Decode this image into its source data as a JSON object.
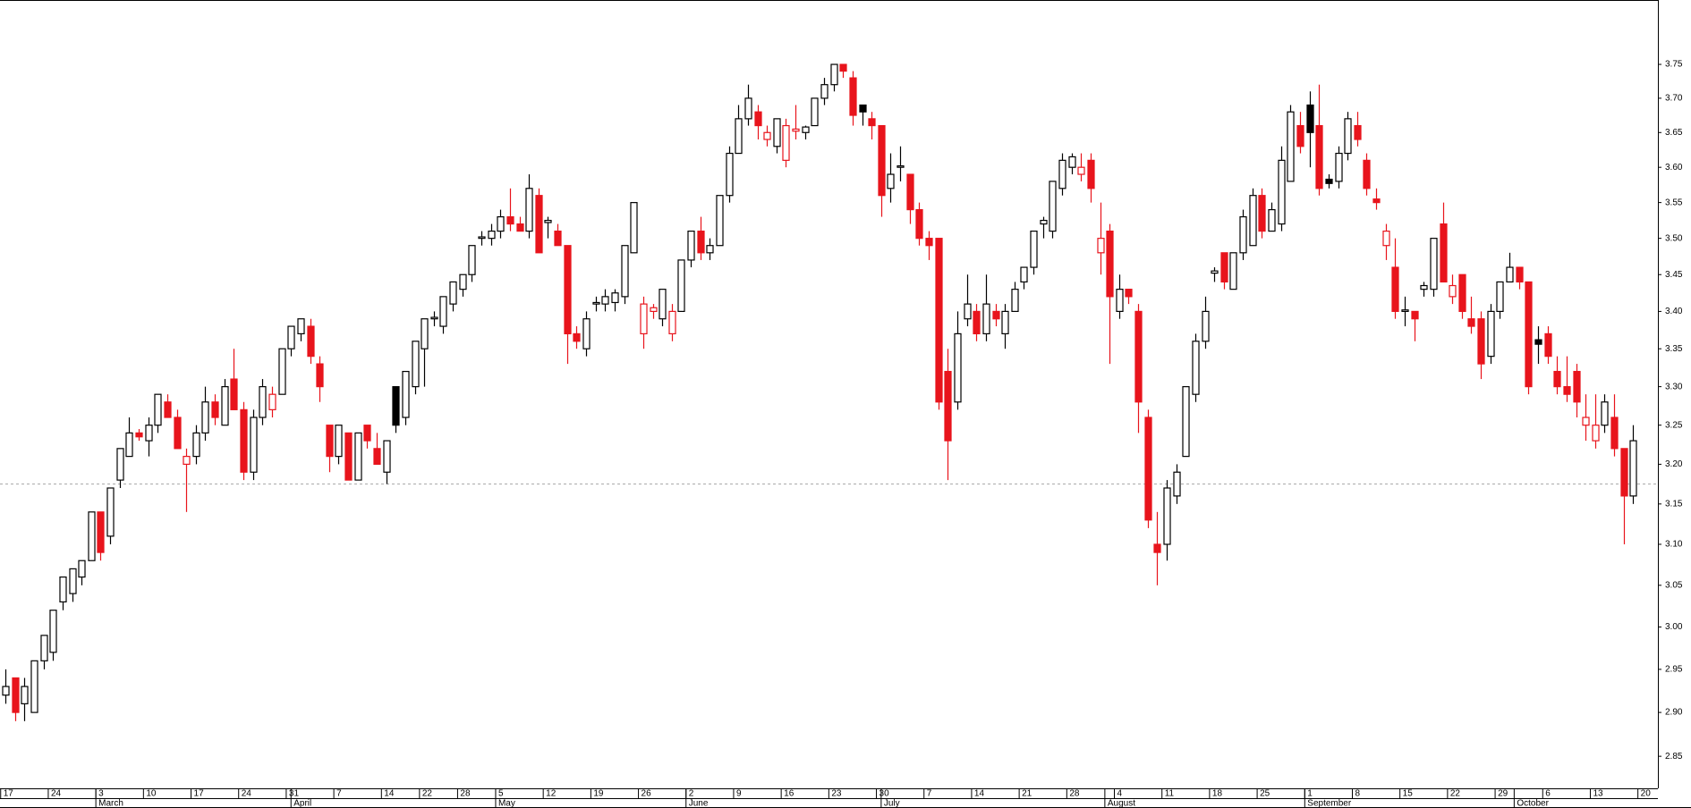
{
  "chart_data": {
    "type": "candlestick",
    "open": [
      2.92,
      2.94,
      2.91,
      2.9,
      2.96,
      2.97,
      3.03,
      3.04,
      3.06,
      3.08,
      3.14,
      3.11,
      3.18,
      3.21,
      3.24,
      3.23,
      3.25,
      3.28,
      3.26,
      3.2,
      3.21,
      3.24,
      3.28,
      3.25,
      3.31,
      3.27,
      3.19,
      3.26,
      3.27,
      3.29,
      3.35,
      3.37,
      3.38,
      3.33,
      3.25,
      3.21,
      3.24,
      3.18,
      3.25,
      3.22,
      3.19,
      3.3,
      3.26,
      3.3,
      3.35,
      3.39,
      3.38,
      3.41,
      3.43,
      3.45,
      3.5,
      3.5,
      3.51,
      3.53,
      3.52,
      3.51,
      3.56,
      3.522,
      3.51,
      3.49,
      3.37,
      3.35,
      3.41,
      3.41,
      3.412,
      3.42,
      3.48,
      3.37,
      3.4,
      3.39,
      3.37,
      3.4,
      3.47,
      3.51,
      3.48,
      3.49,
      3.56,
      3.62,
      3.67,
      3.68,
      3.64,
      3.63,
      3.61,
      3.652,
      3.65,
      3.66,
      3.7,
      3.72,
      3.75,
      3.73,
      3.69,
      3.67,
      3.66,
      3.57,
      3.6,
      3.59,
      3.54,
      3.5,
      3.5,
      3.32,
      3.28,
      3.39,
      3.4,
      3.37,
      3.4,
      3.37,
      3.4,
      3.44,
      3.46,
      3.52,
      3.51,
      3.57,
      3.6,
      3.59,
      3.61,
      3.48,
      3.51,
      3.4,
      3.43,
      3.4,
      3.26,
      3.1,
      3.1,
      3.16,
      3.21,
      3.29,
      3.36,
      3.452,
      3.48,
      3.43,
      3.48,
      3.49,
      3.56,
      3.51,
      3.52,
      3.58,
      3.66,
      3.69,
      3.66,
      3.583,
      3.58,
      3.62,
      3.66,
      3.61,
      3.555,
      3.49,
      3.46,
      3.4,
      3.4,
      3.43,
      3.43,
      3.52,
      3.42,
      3.45,
      3.39,
      3.39,
      3.34,
      3.4,
      3.44,
      3.46,
      3.44,
      3.362,
      3.37,
      3.32,
      3.3,
      3.32,
      3.25,
      3.23,
      3.25,
      3.26,
      3.22,
      3.16
    ],
    "high": [
      2.95,
      2.94,
      2.94,
      2.96,
      2.99,
      3.02,
      3.06,
      3.07,
      3.08,
      3.14,
      3.14,
      3.17,
      3.22,
      3.26,
      3.245,
      3.26,
      3.29,
      3.29,
      3.27,
      3.22,
      3.25,
      3.3,
      3.29,
      3.31,
      3.35,
      3.28,
      3.27,
      3.31,
      3.3,
      3.35,
      3.38,
      3.39,
      3.39,
      3.34,
      3.25,
      3.25,
      3.24,
      3.24,
      3.25,
      3.24,
      3.23,
      3.3,
      3.32,
      3.36,
      3.39,
      3.4,
      3.42,
      3.44,
      3.45,
      3.49,
      3.51,
      3.52,
      3.54,
      3.57,
      3.53,
      3.59,
      3.57,
      3.53,
      3.52,
      3.49,
      3.38,
      3.4,
      3.42,
      3.43,
      3.43,
      3.49,
      3.55,
      3.42,
      3.41,
      3.43,
      3.41,
      3.47,
      3.51,
      3.53,
      3.5,
      3.56,
      3.63,
      3.69,
      3.72,
      3.69,
      3.66,
      3.67,
      3.67,
      3.69,
      3.66,
      3.7,
      3.73,
      3.75,
      3.75,
      3.74,
      3.69,
      3.68,
      3.66,
      3.62,
      3.63,
      3.59,
      3.55,
      3.51,
      3.5,
      3.35,
      3.4,
      3.45,
      3.41,
      3.45,
      3.41,
      3.41,
      3.44,
      3.46,
      3.51,
      3.53,
      3.58,
      3.62,
      3.62,
      3.62,
      3.62,
      3.55,
      3.52,
      3.45,
      3.43,
      3.41,
      3.27,
      3.14,
      3.18,
      3.2,
      3.3,
      3.37,
      3.42,
      3.46,
      3.48,
      3.48,
      3.54,
      3.57,
      3.57,
      3.55,
      3.63,
      3.69,
      3.68,
      3.71,
      3.72,
      3.59,
      3.63,
      3.68,
      3.68,
      3.62,
      3.57,
      3.52,
      3.5,
      3.42,
      3.4,
      3.44,
      3.5,
      3.55,
      3.45,
      3.45,
      3.42,
      3.4,
      3.41,
      3.44,
      3.48,
      3.46,
      3.44,
      3.38,
      3.38,
      3.34,
      3.34,
      3.33,
      3.29,
      3.29,
      3.29,
      3.29,
      3.22,
      3.25
    ],
    "low": [
      2.91,
      2.89,
      2.89,
      2.9,
      2.95,
      2.96,
      3.02,
      3.03,
      3.05,
      3.08,
      3.08,
      3.1,
      3.17,
      3.21,
      3.23,
      3.21,
      3.24,
      3.26,
      3.22,
      3.14,
      3.2,
      3.23,
      3.25,
      3.25,
      3.27,
      3.18,
      3.18,
      3.25,
      3.26,
      3.29,
      3.34,
      3.36,
      3.33,
      3.28,
      3.19,
      3.2,
      3.18,
      3.18,
      3.22,
      3.2,
      3.175,
      3.24,
      3.25,
      3.29,
      3.3,
      3.38,
      3.37,
      3.4,
      3.42,
      3.44,
      3.49,
      3.49,
      3.5,
      3.51,
      3.51,
      3.5,
      3.48,
      3.5,
      3.49,
      3.33,
      3.35,
      3.34,
      3.4,
      3.4,
      3.4,
      3.41,
      3.48,
      3.35,
      3.39,
      3.38,
      3.36,
      3.4,
      3.46,
      3.47,
      3.47,
      3.49,
      3.55,
      3.62,
      3.66,
      3.64,
      3.63,
      3.62,
      3.6,
      3.64,
      3.64,
      3.66,
      3.69,
      3.71,
      3.73,
      3.66,
      3.66,
      3.64,
      3.53,
      3.55,
      3.58,
      3.52,
      3.49,
      3.47,
      3.27,
      3.18,
      3.27,
      3.38,
      3.36,
      3.36,
      3.38,
      3.35,
      3.4,
      3.43,
      3.45,
      3.5,
      3.5,
      3.56,
      3.59,
      3.58,
      3.55,
      3.45,
      3.33,
      3.39,
      3.41,
      3.24,
      3.12,
      3.05,
      3.08,
      3.15,
      3.21,
      3.28,
      3.35,
      3.44,
      3.43,
      3.43,
      3.47,
      3.49,
      3.5,
      3.51,
      3.51,
      3.58,
      3.62,
      3.6,
      3.56,
      3.57,
      3.57,
      3.61,
      3.63,
      3.56,
      3.54,
      3.47,
      3.39,
      3.38,
      3.36,
      3.42,
      3.42,
      3.44,
      3.41,
      3.39,
      3.37,
      3.31,
      3.33,
      3.39,
      3.44,
      3.43,
      3.29,
      3.33,
      3.33,
      3.29,
      3.28,
      3.26,
      3.23,
      3.22,
      3.24,
      3.21,
      3.1,
      3.15
    ],
    "close": [
      2.93,
      2.9,
      2.93,
      2.96,
      2.99,
      3.02,
      3.06,
      3.07,
      3.08,
      3.14,
      3.09,
      3.17,
      3.22,
      3.24,
      3.235,
      3.25,
      3.29,
      3.26,
      3.22,
      3.21,
      3.24,
      3.28,
      3.26,
      3.3,
      3.27,
      3.19,
      3.26,
      3.3,
      3.29,
      3.35,
      3.38,
      3.39,
      3.34,
      3.3,
      3.21,
      3.25,
      3.18,
      3.24,
      3.23,
      3.2,
      3.23,
      3.25,
      3.32,
      3.36,
      3.39,
      3.392,
      3.42,
      3.44,
      3.45,
      3.49,
      3.502,
      3.51,
      3.53,
      3.52,
      3.51,
      3.57,
      3.48,
      3.525,
      3.49,
      3.37,
      3.36,
      3.39,
      3.412,
      3.42,
      3.425,
      3.49,
      3.55,
      3.41,
      3.405,
      3.43,
      3.4,
      3.47,
      3.51,
      3.48,
      3.49,
      3.56,
      3.62,
      3.67,
      3.7,
      3.66,
      3.65,
      3.67,
      3.66,
      3.655,
      3.658,
      3.7,
      3.72,
      3.75,
      3.74,
      3.675,
      3.68,
      3.66,
      3.56,
      3.59,
      3.602,
      3.54,
      3.5,
      3.49,
      3.28,
      3.23,
      3.37,
      3.41,
      3.37,
      3.41,
      3.39,
      3.4,
      3.43,
      3.46,
      3.51,
      3.525,
      3.58,
      3.61,
      3.615,
      3.6,
      3.57,
      3.5,
      3.42,
      3.43,
      3.42,
      3.28,
      3.13,
      3.09,
      3.17,
      3.19,
      3.3,
      3.36,
      3.4,
      3.455,
      3.44,
      3.48,
      3.53,
      3.56,
      3.51,
      3.54,
      3.61,
      3.68,
      3.63,
      3.65,
      3.57,
      3.577,
      3.62,
      3.67,
      3.64,
      3.57,
      3.55,
      3.51,
      3.4,
      3.402,
      3.39,
      3.435,
      3.5,
      3.44,
      3.435,
      3.4,
      3.38,
      3.33,
      3.4,
      3.44,
      3.46,
      3.44,
      3.3,
      3.356,
      3.34,
      3.3,
      3.29,
      3.28,
      3.26,
      3.25,
      3.28,
      3.22,
      3.16,
      3.23
    ],
    "up_color": "#000000",
    "down_color": "#e8141c",
    "log_scale": true,
    "ylim": [
      2.814,
      3.847
    ],
    "yticks": [
      {
        "value": 2.85,
        "label": "2.85"
      },
      {
        "value": 2.9,
        "label": "2.90"
      },
      {
        "value": 2.95,
        "label": "2.95"
      },
      {
        "value": 3,
        "label": "3.00"
      },
      {
        "value": 3.05,
        "label": "3.05"
      },
      {
        "value": 3.1,
        "label": "3.10"
      },
      {
        "value": 3.15,
        "label": "3.15"
      },
      {
        "value": 3.2,
        "label": "3.20"
      },
      {
        "value": 3.25,
        "label": "3.25"
      },
      {
        "value": 3.3,
        "label": "3.30"
      },
      {
        "value": 3.35,
        "label": "3.35"
      },
      {
        "value": 3.4,
        "label": "3.40"
      },
      {
        "value": 3.45,
        "label": "3.45"
      },
      {
        "value": 3.5,
        "label": "3.50"
      },
      {
        "value": 3.55,
        "label": "3.55"
      },
      {
        "value": 3.6,
        "label": "3.60"
      },
      {
        "value": 3.65,
        "label": "3.65"
      },
      {
        "value": 3.7,
        "label": "3.70"
      },
      {
        "value": 3.75,
        "label": "3.75"
      }
    ],
    "xlim": [
      -0.57,
      173.6
    ],
    "xticks": [
      {
        "value": 0,
        "label": "17"
      },
      {
        "value": 5,
        "label": "24"
      },
      {
        "value": 10,
        "label": "3"
      },
      {
        "value": 15,
        "label": "10"
      },
      {
        "value": 20,
        "label": "17"
      },
      {
        "value": 25,
        "label": "24"
      },
      {
        "value": 30,
        "label": "31"
      },
      {
        "value": 35,
        "label": "7"
      },
      {
        "value": 40,
        "label": "14"
      },
      {
        "value": 44,
        "label": "22"
      },
      {
        "value": 48,
        "label": "28"
      },
      {
        "value": 52,
        "label": "5"
      },
      {
        "value": 57,
        "label": "12"
      },
      {
        "value": 62,
        "label": "19"
      },
      {
        "value": 67,
        "label": "26"
      },
      {
        "value": 72,
        "label": "2"
      },
      {
        "value": 77,
        "label": "9"
      },
      {
        "value": 82,
        "label": "16"
      },
      {
        "value": 87,
        "label": "23"
      },
      {
        "value": 92,
        "label": "30"
      },
      {
        "value": 97,
        "label": "7"
      },
      {
        "value": 102,
        "label": "14"
      },
      {
        "value": 107,
        "label": "21"
      },
      {
        "value": 112,
        "label": "28"
      },
      {
        "value": 117,
        "label": "4"
      },
      {
        "value": 122,
        "label": "11"
      },
      {
        "value": 127,
        "label": "18"
      },
      {
        "value": 132,
        "label": "25"
      },
      {
        "value": 137,
        "label": "1"
      },
      {
        "value": 142,
        "label": "8"
      },
      {
        "value": 147,
        "label": "15"
      },
      {
        "value": 152,
        "label": "22"
      },
      {
        "value": 157,
        "label": "29"
      },
      {
        "value": 162,
        "label": "6"
      },
      {
        "value": 167,
        "label": "13"
      },
      {
        "value": 172,
        "label": "20"
      }
    ],
    "month_ticks": [
      {
        "value": 10,
        "label": "March"
      },
      {
        "value": 30.5,
        "label": "April"
      },
      {
        "value": 52,
        "label": "May"
      },
      {
        "value": 72,
        "label": "June"
      },
      {
        "value": 92.5,
        "label": "July"
      },
      {
        "value": 116,
        "label": "August"
      },
      {
        "value": 137,
        "label": "September"
      },
      {
        "value": 159,
        "label": "October"
      }
    ],
    "reference_line": 3.175
  }
}
